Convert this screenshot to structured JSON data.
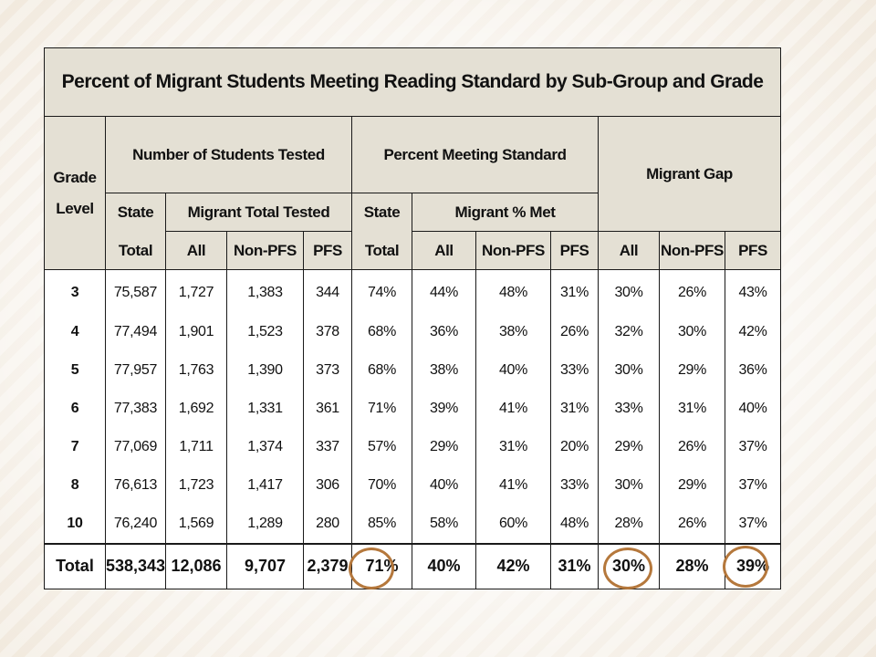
{
  "title": "Percent of Migrant Students Meeting Reading Standard by Sub-Group and Grade",
  "headers": {
    "grade_line1": "Grade",
    "grade_line2": "Level",
    "tested": "Number of Students Tested",
    "percent": "Percent Meeting Standard",
    "gap": "Migrant Gap",
    "state_top": "State",
    "state_total": "Total",
    "migrant_total_tested": "Migrant Total Tested",
    "migrant_pct_met": "Migrant % Met",
    "all": "All",
    "nonpfs": "Non-PFS",
    "pfs": "PFS"
  },
  "rows": [
    {
      "grade": "3",
      "state_total": "75,587",
      "all": "1,727",
      "nonpfs": "1,383",
      "pfs": "344",
      "state_pct": "74%",
      "pct_all": "44%",
      "pct_nonpfs": "48%",
      "pct_pfs": "31%",
      "gap_all": "30%",
      "gap_nonpfs": "26%",
      "gap_pfs": "43%"
    },
    {
      "grade": "4",
      "state_total": "77,494",
      "all": "1,901",
      "nonpfs": "1,523",
      "pfs": "378",
      "state_pct": "68%",
      "pct_all": "36%",
      "pct_nonpfs": "38%",
      "pct_pfs": "26%",
      "gap_all": "32%",
      "gap_nonpfs": "30%",
      "gap_pfs": "42%"
    },
    {
      "grade": "5",
      "state_total": "77,957",
      "all": "1,763",
      "nonpfs": "1,390",
      "pfs": "373",
      "state_pct": "68%",
      "pct_all": "38%",
      "pct_nonpfs": "40%",
      "pct_pfs": "33%",
      "gap_all": "30%",
      "gap_nonpfs": "29%",
      "gap_pfs": "36%"
    },
    {
      "grade": "6",
      "state_total": "77,383",
      "all": "1,692",
      "nonpfs": "1,331",
      "pfs": "361",
      "state_pct": "71%",
      "pct_all": "39%",
      "pct_nonpfs": "41%",
      "pct_pfs": "31%",
      "gap_all": "33%",
      "gap_nonpfs": "31%",
      "gap_pfs": "40%"
    },
    {
      "grade": "7",
      "state_total": "77,069",
      "all": "1,711",
      "nonpfs": "1,374",
      "pfs": "337",
      "state_pct": "57%",
      "pct_all": "29%",
      "pct_nonpfs": "31%",
      "pct_pfs": "20%",
      "gap_all": "29%",
      "gap_nonpfs": "26%",
      "gap_pfs": "37%"
    },
    {
      "grade": "8",
      "state_total": "76,613",
      "all": "1,723",
      "nonpfs": "1,417",
      "pfs": "306",
      "state_pct": "70%",
      "pct_all": "40%",
      "pct_nonpfs": "41%",
      "pct_pfs": "33%",
      "gap_all": "30%",
      "gap_nonpfs": "29%",
      "gap_pfs": "37%"
    },
    {
      "grade": "10",
      "state_total": "76,240",
      "all": "1,569",
      "nonpfs": "1,289",
      "pfs": "280",
      "state_pct": "85%",
      "pct_all": "58%",
      "pct_nonpfs": "60%",
      "pct_pfs": "48%",
      "gap_all": "28%",
      "gap_nonpfs": "26%",
      "gap_pfs": "37%"
    }
  ],
  "total": {
    "label": "Total",
    "state_total": "538,343",
    "all": "12,086",
    "nonpfs": "9,707",
    "pfs": "2,379",
    "state_pct": "71%",
    "pct_all": "40%",
    "pct_nonpfs": "42%",
    "pct_pfs": "31%",
    "gap_all": "30%",
    "gap_nonpfs": "28%",
    "gap_pfs": "39%"
  },
  "colors": {
    "header_bg": "#e4e0d4",
    "circle": "#b5783c",
    "background": "#f6f1e9"
  }
}
